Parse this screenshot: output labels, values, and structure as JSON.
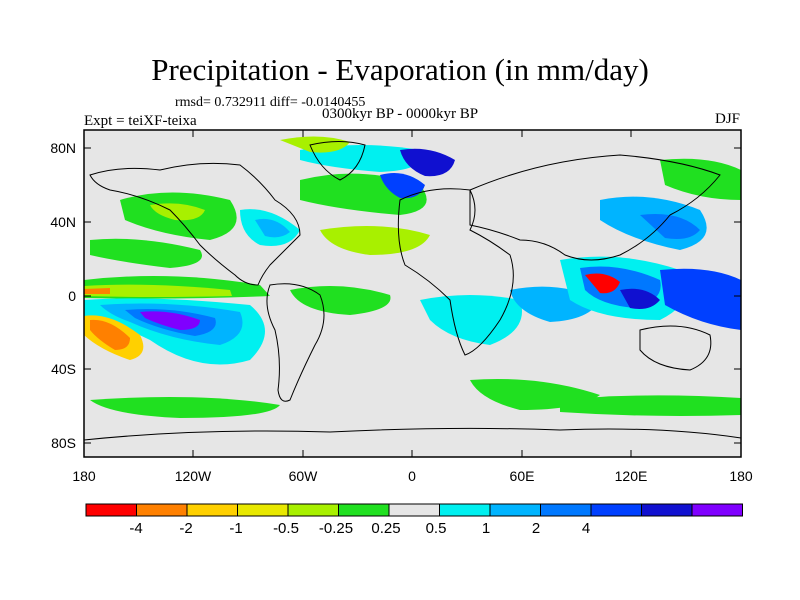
{
  "title": "Precipitation - Evaporation (in mm/day)",
  "stats": "rmsd= 0.732911  diff= -0.0140455",
  "period": "0300kyr BP - 0000kyr BP",
  "experiment": "Expt = teiXF-teixa",
  "season": "DJF",
  "axes": {
    "y_ticks": [
      "80N",
      "40N",
      "0",
      "40S",
      "80S"
    ],
    "x_ticks": [
      "180",
      "120W",
      "60W",
      "0",
      "60E",
      "120E",
      "180"
    ]
  },
  "colorbar": {
    "labels": [
      "-4",
      "-2",
      "-1",
      "-0.5",
      "-0.25",
      "0.25",
      "0.5",
      "1",
      "2",
      "4"
    ],
    "colors": [
      "#ff0000",
      "#ff8000",
      "#ffd000",
      "#e8e800",
      "#a8f000",
      "#20e020",
      "#e6e6e6",
      "#00f0f0",
      "#00b4ff",
      "#0078ff",
      "#0040ff",
      "#1010d0",
      "#8000ff"
    ]
  }
}
